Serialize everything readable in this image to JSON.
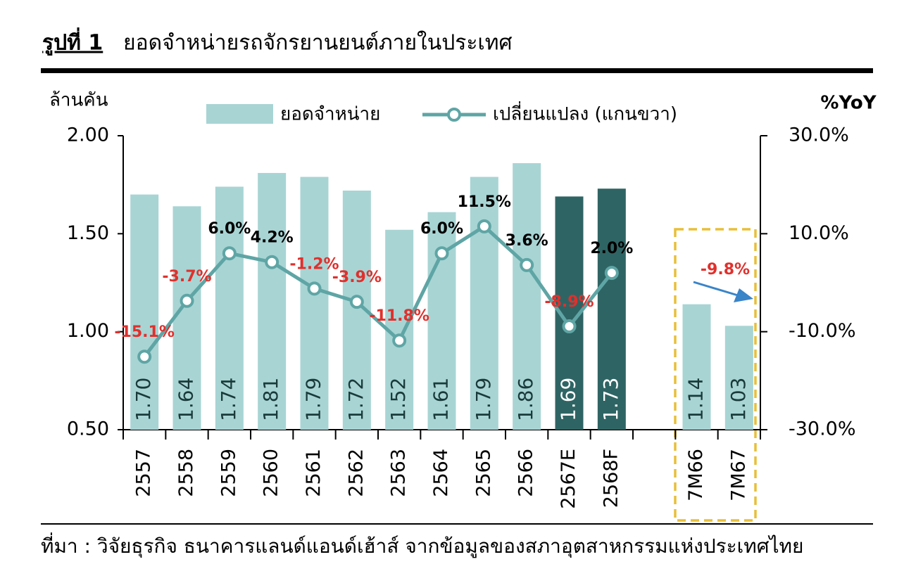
{
  "chart_data": {
    "type": "bar",
    "title_prefix": "รูปที่ 1",
    "title": "ยอดจำหน่ายรถจักรยานยนต์ภายในประเทศ",
    "ylabel": "ล้านคัน",
    "y2label": "%YoY",
    "source": "ที่มา : วิจัยธุรกิจ ธนาคารแลนด์แอนด์เฮ้าส์ จากข้อมูลของสภาอุตสาหกรรมแห่งประเทศไทย",
    "categories": [
      "2557",
      "2558",
      "2559",
      "2560",
      "2561",
      "2562",
      "2563",
      "2564",
      "2565",
      "2566",
      "2567E",
      "2568F",
      null,
      "7M66",
      "7M67"
    ],
    "ylim": [
      0.5,
      2.0
    ],
    "yticks": [
      {
        "value": 0.5,
        "label": "0.50"
      },
      {
        "value": 1.0,
        "label": "1.00"
      },
      {
        "value": 1.5,
        "label": "1.50"
      },
      {
        "value": 2.0,
        "label": "2.00"
      }
    ],
    "y2lim": [
      -30,
      30
    ],
    "y2ticks": [
      {
        "value": -30,
        "label": "-30.0%"
      },
      {
        "value": -10,
        "label": "-10.0%"
      },
      {
        "value": 10,
        "label": "10.0%"
      },
      {
        "value": 30,
        "label": "30.0%"
      }
    ],
    "series": [
      {
        "name": "ยอดจำหน่าย",
        "type": "bar",
        "color": "#a8d4d4",
        "colors": [
          "#a8d4d4",
          "#a8d4d4",
          "#a8d4d4",
          "#a8d4d4",
          "#a8d4d4",
          "#a8d4d4",
          "#a8d4d4",
          "#a8d4d4",
          "#a8d4d4",
          "#a8d4d4",
          "#2f6464",
          "#2f6464",
          null,
          "#a8d4d4",
          "#a8d4d4"
        ],
        "values": [
          1.7,
          1.64,
          1.74,
          1.81,
          1.79,
          1.72,
          1.52,
          1.61,
          1.79,
          1.86,
          1.69,
          1.73,
          null,
          1.14,
          1.03
        ],
        "value_labels": [
          "1.70",
          "1.64",
          "1.74",
          "1.81",
          "1.79",
          "1.72",
          "1.52",
          "1.61",
          "1.79",
          "1.86",
          "1.69",
          "1.73",
          null,
          "1.14",
          "1.03"
        ]
      },
      {
        "name": "เปลี่ยนแปลง (แกนขวา)",
        "type": "line",
        "axis": "y2",
        "color": "#5fa5a5",
        "values": [
          -15.1,
          -3.7,
          6.0,
          4.2,
          -1.2,
          -3.9,
          -11.8,
          6.0,
          11.5,
          3.6,
          -8.9,
          2.0,
          null,
          null,
          null
        ],
        "value_labels": [
          "-15.1%",
          "-3.7%",
          "6.0%",
          "4.2%",
          "-1.2%",
          "-3.9%",
          "-11.8%",
          "6.0%",
          "11.5%",
          "3.6%",
          "-8.9%",
          "2.0%",
          null,
          null,
          null
        ]
      }
    ],
    "annotation": "-9.8%"
  }
}
